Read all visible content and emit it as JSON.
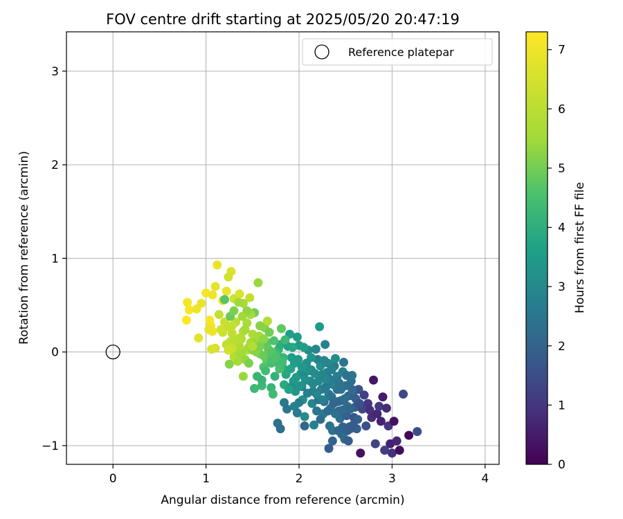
{
  "chart_data": {
    "type": "scatter",
    "title": "FOV centre drift starting at 2025/05/20 20:47:19",
    "xlabel": "Angular distance from reference (arcmin)",
    "ylabel": "Rotation from reference (arcmin)",
    "xlim": [
      -0.5,
      4.15
    ],
    "ylim": [
      -1.2,
      3.42
    ],
    "x_ticks": [
      0,
      1,
      2,
      3,
      4
    ],
    "y_ticks": [
      -1,
      0,
      1,
      2,
      3
    ],
    "grid": true,
    "legend": {
      "placement": "top-right",
      "entries": [
        "Reference platepar"
      ]
    },
    "reference_point": {
      "x": 0,
      "y": 0,
      "label": "Reference platepar",
      "marker": "hollow-circle"
    },
    "colorbar": {
      "label": "Hours from first FF file",
      "colormap": "viridis",
      "range": [
        0,
        7.3
      ],
      "ticks": [
        0,
        1,
        2,
        3,
        4,
        5,
        6,
        7
      ]
    },
    "points": [
      [
        0.8,
        0.53,
        7.1
      ],
      [
        0.82,
        0.45,
        7.2
      ],
      [
        0.79,
        0.34,
        7.3
      ],
      [
        0.9,
        0.46,
        7.0
      ],
      [
        0.95,
        0.52,
        6.9
      ],
      [
        1.0,
        0.63,
        7.1
      ],
      [
        1.07,
        0.61,
        7.0
      ],
      [
        1.1,
        0.7,
        6.8
      ],
      [
        1.12,
        0.93,
        6.9
      ],
      [
        1.18,
        0.55,
        7.0
      ],
      [
        1.22,
        0.65,
        6.9
      ],
      [
        1.27,
        0.86,
        6.6
      ],
      [
        1.24,
        0.8,
        6.5
      ],
      [
        1.3,
        0.57,
        6.4
      ],
      [
        1.36,
        0.62,
        6.6
      ],
      [
        1.04,
        0.34,
        7.2
      ],
      [
        1.05,
        0.28,
        7.1
      ],
      [
        1.07,
        0.22,
        7.0
      ],
      [
        1.03,
        0.24,
        6.9
      ],
      [
        0.92,
        0.15,
        6.8
      ],
      [
        1.1,
        0.04,
        6.5
      ],
      [
        1.06,
        0.03,
        6.6
      ],
      [
        1.18,
        0.21,
        6.3
      ],
      [
        1.22,
        0.27,
        6.2
      ],
      [
        1.26,
        0.11,
        6.0
      ],
      [
        1.28,
        0.2,
        6.1
      ],
      [
        1.32,
        0.32,
        6.0
      ],
      [
        1.36,
        0.15,
        5.9
      ],
      [
        1.4,
        0.22,
        5.8
      ],
      [
        1.44,
        0.31,
        5.7
      ],
      [
        1.47,
        0.58,
        6.2
      ],
      [
        1.4,
        0.52,
        5.6
      ],
      [
        1.35,
        0.53,
        5.5
      ],
      [
        1.56,
        0.74,
        5.4
      ],
      [
        1.44,
        0.02,
        5.8
      ],
      [
        1.48,
        0.1,
        5.6
      ],
      [
        1.5,
        0.19,
        5.7
      ],
      [
        1.53,
        0.05,
        5.5
      ],
      [
        1.55,
        0.12,
        5.4
      ],
      [
        1.57,
        0.17,
        5.6
      ],
      [
        1.6,
        0.09,
        5.3
      ],
      [
        1.63,
        0.26,
        5.2
      ],
      [
        1.66,
        0.33,
        5.9
      ],
      [
        1.52,
        0.42,
        5.0
      ],
      [
        1.68,
        0.21,
        5.0
      ],
      [
        1.22,
        0.08,
        6.1
      ],
      [
        1.3,
        -0.05,
        5.9
      ],
      [
        1.25,
        -0.13,
        5.2
      ],
      [
        1.34,
        0.0,
        5.7
      ],
      [
        1.38,
        -0.02,
        5.5
      ],
      [
        1.42,
        -0.08,
        5.4
      ],
      [
        1.46,
        -0.12,
        5.1
      ],
      [
        1.4,
        -0.26,
        5.4
      ],
      [
        1.58,
        -0.02,
        5.0
      ],
      [
        1.55,
        -0.26,
        4.2
      ],
      [
        1.52,
        -0.39,
        4.3
      ],
      [
        1.62,
        -0.16,
        4.6
      ],
      [
        1.6,
        -0.36,
        4.3
      ],
      [
        1.65,
        -0.08,
        4.8
      ],
      [
        1.69,
        -0.04,
        4.5
      ],
      [
        1.7,
        -0.38,
        4.2
      ],
      [
        1.72,
        -0.45,
        4.4
      ],
      [
        1.74,
        -0.26,
        4.1
      ],
      [
        1.76,
        -0.11,
        4.3
      ],
      [
        1.78,
        0.03,
        4.2
      ],
      [
        1.8,
        0.08,
        4.0
      ],
      [
        1.82,
        -0.15,
        4.1
      ],
      [
        1.84,
        -0.35,
        3.9
      ],
      [
        1.86,
        -0.24,
        3.8
      ],
      [
        1.88,
        0.06,
        3.7
      ],
      [
        1.9,
        0.19,
        3.6
      ],
      [
        1.92,
        -0.06,
        3.6
      ],
      [
        1.94,
        -0.31,
        3.5
      ],
      [
        1.96,
        -0.42,
        3.4
      ],
      [
        1.98,
        0.16,
        3.5
      ],
      [
        2.0,
        0.07,
        3.4
      ],
      [
        2.02,
        -0.23,
        3.3
      ],
      [
        2.04,
        -0.51,
        3.2
      ],
      [
        2.06,
        -0.69,
        3.1
      ],
      [
        2.08,
        -0.12,
        3.2
      ],
      [
        2.1,
        0.02,
        3.1
      ],
      [
        2.12,
        -0.31,
        3.0
      ],
      [
        2.14,
        -0.55,
        2.9
      ],
      [
        2.16,
        -0.78,
        2.8
      ],
      [
        2.18,
        0.03,
        2.9
      ],
      [
        2.2,
        -0.08,
        2.8
      ],
      [
        2.22,
        0.27,
        3.5
      ],
      [
        2.24,
        -0.4,
        2.7
      ],
      [
        2.26,
        -0.66,
        2.6
      ],
      [
        2.28,
        0.08,
        2.8
      ],
      [
        2.3,
        -0.22,
        2.7
      ],
      [
        2.32,
        -0.45,
        2.6
      ],
      [
        2.34,
        -0.6,
        2.5
      ],
      [
        2.36,
        -0.84,
        2.4
      ],
      [
        2.38,
        -0.15,
        2.6
      ],
      [
        2.4,
        -0.29,
        2.5
      ],
      [
        2.42,
        -0.53,
        2.4
      ],
      [
        2.44,
        -0.71,
        2.3
      ],
      [
        2.46,
        -0.88,
        2.2
      ],
      [
        2.48,
        -0.11,
        2.5
      ],
      [
        2.5,
        -0.36,
        2.3
      ],
      [
        2.52,
        -0.58,
        2.2
      ],
      [
        2.54,
        -0.8,
        2.1
      ],
      [
        2.56,
        -0.31,
        2.3
      ],
      [
        2.58,
        -0.47,
        2.0
      ],
      [
        2.6,
        -0.59,
        1.8
      ],
      [
        2.62,
        -0.82,
        1.9
      ],
      [
        2.64,
        -0.4,
        1.7
      ],
      [
        2.66,
        -1.08,
        0.3
      ],
      [
        2.68,
        -0.61,
        1.4
      ],
      [
        2.7,
        -0.46,
        1.2
      ],
      [
        2.72,
        -0.79,
        1.6
      ],
      [
        2.74,
        -0.55,
        1.0
      ],
      [
        2.76,
        -0.62,
        0.9
      ],
      [
        2.78,
        -0.7,
        0.8
      ],
      [
        2.8,
        -0.3,
        0.4
      ],
      [
        2.82,
        -0.98,
        1.3
      ],
      [
        2.84,
        -0.66,
        0.7
      ],
      [
        2.86,
        -0.58,
        1.1
      ],
      [
        2.88,
        -0.74,
        0.6
      ],
      [
        2.9,
        -0.48,
        0.5
      ],
      [
        2.92,
        -1.05,
        1.2
      ],
      [
        2.94,
        -0.6,
        0.8
      ],
      [
        2.96,
        -0.79,
        1.0
      ],
      [
        2.98,
        -0.98,
        0.6
      ],
      [
        3.0,
        -1.08,
        0.9
      ],
      [
        3.02,
        -0.74,
        0.3
      ],
      [
        3.05,
        -0.95,
        0.7
      ],
      [
        3.08,
        -1.05,
        0.2
      ],
      [
        3.12,
        -0.45,
        1.4
      ],
      [
        3.18,
        -0.89,
        0.1
      ],
      [
        3.27,
        -0.85,
        1.5
      ],
      [
        2.32,
        -1.03,
        1.8
      ],
      [
        2.36,
        -0.95,
        2.0
      ],
      [
        2.06,
        -0.79,
        2.2
      ],
      [
        1.77,
        -0.76,
        2.4
      ],
      [
        1.8,
        -0.82,
        2.3
      ],
      [
        1.84,
        -0.54,
        2.6
      ],
      [
        1.87,
        -0.61,
        2.5
      ],
      [
        1.92,
        -0.37,
        3.2
      ],
      [
        1.95,
        -0.58,
        2.8
      ],
      [
        1.98,
        -0.65,
        2.6
      ],
      [
        2.0,
        -0.54,
        2.7
      ],
      [
        2.03,
        -0.37,
        2.9
      ],
      [
        2.05,
        -0.25,
        3.0
      ],
      [
        2.09,
        -0.44,
        2.8
      ],
      [
        2.13,
        -0.19,
        3.1
      ],
      [
        2.15,
        -0.42,
        2.7
      ],
      [
        2.19,
        -0.63,
        2.5
      ],
      [
        2.21,
        -0.51,
        2.4
      ],
      [
        2.23,
        -0.72,
        2.3
      ],
      [
        2.25,
        -0.24,
        2.9
      ],
      [
        2.27,
        -0.53,
        2.4
      ],
      [
        2.29,
        -0.37,
        2.6
      ],
      [
        2.31,
        -0.63,
        2.2
      ],
      [
        2.33,
        -0.29,
        2.6
      ],
      [
        2.35,
        -0.48,
        2.4
      ],
      [
        2.37,
        -0.55,
        2.1
      ],
      [
        2.39,
        -0.07,
        3.1
      ],
      [
        2.41,
        -0.4,
        2.3
      ],
      [
        2.43,
        -0.63,
        2.0
      ],
      [
        2.45,
        -0.52,
        2.1
      ],
      [
        2.47,
        -0.21,
        2.8
      ],
      [
        2.49,
        -0.93,
        2.2
      ],
      [
        2.51,
        -0.68,
        1.9
      ],
      [
        2.53,
        -0.47,
        2.0
      ],
      [
        2.55,
        -0.82,
        1.8
      ],
      [
        2.57,
        -0.25,
        2.5
      ],
      [
        2.59,
        -0.7,
        1.7
      ],
      [
        1.6,
        -0.3,
        4.2
      ],
      [
        1.64,
        -0.2,
        4.4
      ],
      [
        1.66,
        0.1,
        4.7
      ],
      [
        1.7,
        -0.12,
        4.5
      ],
      [
        1.73,
        0.12,
        4.6
      ],
      [
        1.77,
        -0.03,
        4.4
      ],
      [
        1.81,
        0.25,
        4.8
      ],
      [
        1.83,
        -0.06,
        4.2
      ],
      [
        1.85,
        0.13,
        4.3
      ],
      [
        1.87,
        -0.2,
        3.9
      ],
      [
        1.89,
        -0.4,
        3.7
      ],
      [
        1.91,
        -0.18,
        3.8
      ],
      [
        1.93,
        0.05,
        3.8
      ],
      [
        1.95,
        -0.12,
        3.6
      ],
      [
        1.97,
        -0.27,
        3.5
      ],
      [
        1.99,
        -0.08,
        3.5
      ],
      [
        2.01,
        -0.36,
        3.3
      ],
      [
        2.03,
        -0.16,
        3.4
      ],
      [
        2.05,
        0.05,
        3.6
      ],
      [
        2.07,
        -0.3,
        3.2
      ],
      [
        2.11,
        -0.2,
        3.2
      ],
      [
        2.13,
        -0.06,
        3.3
      ],
      [
        2.15,
        -0.34,
        3.0
      ],
      [
        2.17,
        -0.23,
        3.1
      ],
      [
        2.19,
        -0.45,
        2.9
      ],
      [
        2.21,
        -0.31,
        3.0
      ],
      [
        2.23,
        -0.15,
        3.2
      ],
      [
        2.25,
        -0.51,
        2.8
      ],
      [
        2.27,
        -0.09,
        3.0
      ],
      [
        2.29,
        -0.29,
        2.9
      ],
      [
        2.31,
        -0.12,
        2.9
      ],
      [
        2.33,
        -0.79,
        2.4
      ],
      [
        2.35,
        -0.19,
        2.8
      ],
      [
        2.37,
        -0.35,
        2.7
      ],
      [
        2.39,
        -0.66,
        2.4
      ],
      [
        2.41,
        -0.26,
        2.7
      ],
      [
        2.43,
        -0.33,
        2.5
      ],
      [
        2.45,
        -0.4,
        2.4
      ],
      [
        2.47,
        -0.62,
        2.2
      ],
      [
        2.49,
        -0.5,
        2.3
      ],
      [
        2.51,
        -0.25,
        2.4
      ],
      [
        2.53,
        -0.95,
        1.9
      ],
      [
        2.55,
        -0.61,
        2.1
      ],
      [
        2.57,
        -0.4,
        2.2
      ],
      [
        2.61,
        -0.5,
        1.9
      ],
      [
        2.63,
        -0.72,
        1.9
      ],
      [
        2.42,
        -0.84,
        2.1
      ],
      [
        2.47,
        -0.8,
        2.0
      ],
      [
        2.52,
        -0.84,
        1.9
      ],
      [
        2.58,
        -0.78,
        1.8
      ],
      [
        2.65,
        -0.55,
        1.6
      ],
      [
        1.46,
        0.05,
        5.5
      ],
      [
        1.5,
        0.02,
        5.3
      ],
      [
        1.54,
        0.0,
        5.2
      ],
      [
        1.58,
        0.06,
        5.1
      ],
      [
        1.62,
        -0.04,
        4.9
      ],
      [
        1.67,
        0.03,
        4.8
      ],
      [
        1.71,
        0.0,
        4.7
      ],
      [
        1.75,
        -0.06,
        4.6
      ],
      [
        1.79,
        -0.18,
        4.5
      ],
      [
        1.82,
        -0.1,
        4.4
      ],
      [
        1.32,
        0.12,
        6.0
      ],
      [
        1.36,
        0.06,
        5.8
      ],
      [
        1.38,
        0.14,
        5.9
      ],
      [
        1.42,
        0.24,
        5.6
      ],
      [
        1.28,
        0.28,
        6.2
      ],
      [
        1.2,
        0.32,
        6.3
      ],
      [
        1.16,
        0.24,
        6.4
      ],
      [
        1.14,
        0.4,
        6.2
      ],
      [
        1.26,
        0.38,
        4.9
      ],
      [
        1.3,
        0.44,
        5.1
      ],
      [
        1.58,
        0.28,
        5.2
      ],
      [
        1.62,
        0.14,
        5.3
      ],
      [
        1.48,
        0.4,
        5.6
      ],
      [
        1.44,
        0.44,
        5.3
      ],
      [
        1.2,
        0.56,
        4.7
      ],
      [
        1.39,
        0.38,
        5.5
      ],
      [
        1.5,
        0.06,
        5.9
      ],
      [
        1.34,
        -0.1,
        5.6
      ],
      [
        1.28,
        0.04,
        6.3
      ],
      [
        1.24,
        0.02,
        6.4
      ]
    ]
  }
}
